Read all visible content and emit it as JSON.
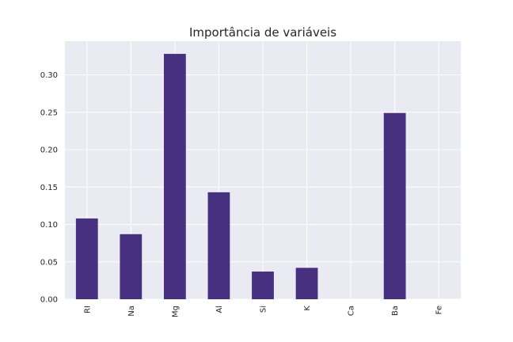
{
  "chart_data": {
    "type": "bar",
    "title": "Importância de variáveis",
    "xlabel": "",
    "ylabel": "",
    "categories": [
      "RI",
      "Na",
      "Mg",
      "Al",
      "Si",
      "K",
      "Ca",
      "Ba",
      "Fe"
    ],
    "values": [
      0.108,
      0.087,
      0.328,
      0.143,
      0.037,
      0.042,
      0.0,
      0.249,
      0.0
    ],
    "ylim": [
      0,
      0.345
    ],
    "yticks": [
      "0.00",
      "0.05",
      "0.10",
      "0.15",
      "0.20",
      "0.25",
      "0.30"
    ],
    "grid": true,
    "legend": "none",
    "colors": {
      "bar": "#46307f",
      "background": "#eaeaf2",
      "grid": "#ffffff",
      "text": "#262626"
    }
  }
}
